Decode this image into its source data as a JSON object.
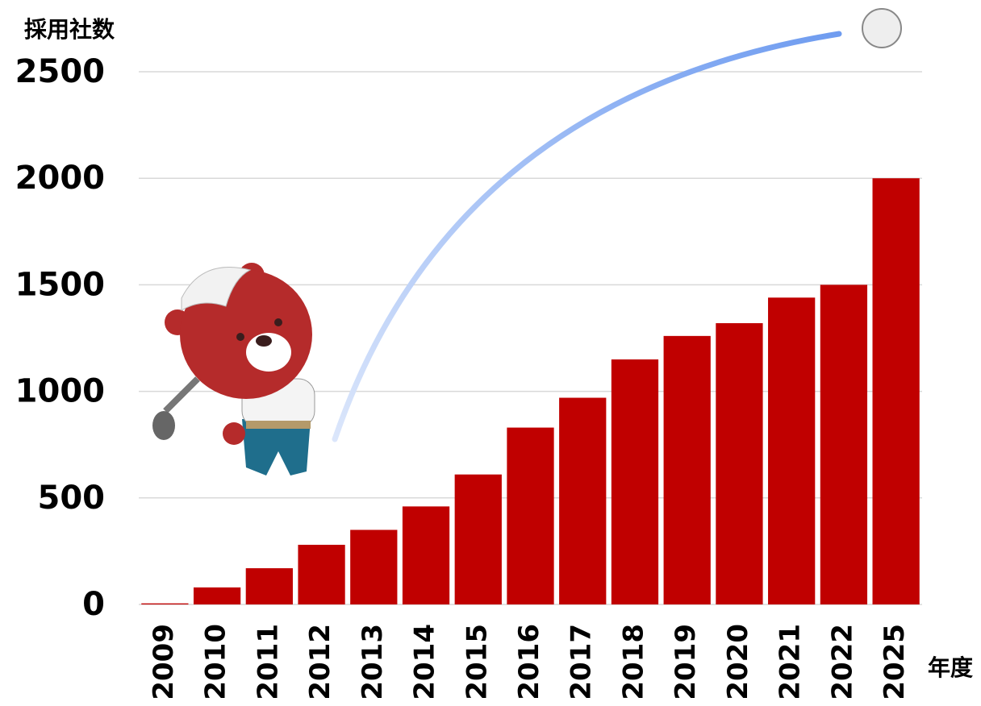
{
  "chart_data": {
    "type": "bar",
    "y_label": "採用社数",
    "x_label": "年度",
    "categories": [
      "2009",
      "2010",
      "2011",
      "2012",
      "2013",
      "2014",
      "2015",
      "2016",
      "2017",
      "2018",
      "2019",
      "2020",
      "2021",
      "2022",
      "2025"
    ],
    "values": [
      5,
      80,
      170,
      280,
      350,
      460,
      610,
      830,
      970,
      1150,
      1260,
      1320,
      1440,
      1500,
      2000
    ],
    "color": "#c00000",
    "ylim": [
      0,
      2500
    ],
    "yticks": [
      0,
      500,
      1000,
      1500,
      2000,
      2500
    ],
    "grid": true
  }
}
